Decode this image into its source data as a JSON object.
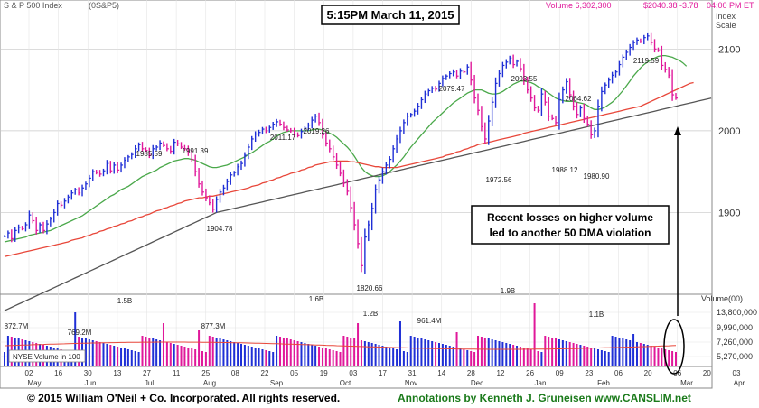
{
  "header": {
    "index_name": "S & P 500 Index",
    "symbol": "(0S&P5)",
    "timestamp": "5:15PM March 11, 2015",
    "volume": "Volume 6,302,300",
    "quote": "$2040.38 -3.78",
    "time": "04:00 PM ET",
    "scale_label_1": "Index",
    "scale_label_2": "Scale"
  },
  "annotation_box": {
    "line1": "Recent losses on higher volume",
    "line2": "led to another 50 DMA violation"
  },
  "volume_panel": {
    "legend": "NYSE Volume in 100",
    "axis_title": "Volume(00)",
    "ticks": [
      "13,800,000",
      "9,990,000",
      "7,260,000",
      "5,270,000"
    ]
  },
  "footer": {
    "copyright": "© 2015  William O'Neil + Co. Incorporated. All rights reserved.",
    "credit": "Annotations by Kenneth J. Gruneisen www.CANSLIM.net"
  },
  "colors": {
    "up_bar": "#1f2fd6",
    "down_bar": "#e0189a",
    "ma50": "#4aa84a",
    "ma200": "#e8473a",
    "ma_long": "#555555",
    "grid": "#c8c8c8",
    "footer_credit": "#1a7a1a"
  },
  "chart_data": {
    "type": "bar",
    "y_axis": {
      "ticks": [
        1900,
        2000,
        2100
      ],
      "range": [
        1800,
        2160
      ]
    },
    "x_axis": {
      "ticks": [
        "02",
        "16",
        "30",
        "13",
        "27",
        "11",
        "25",
        "08",
        "22",
        "05",
        "19",
        "03",
        "17",
        "31",
        "14",
        "28",
        "12",
        "26",
        "09",
        "23",
        "06",
        "20",
        "06",
        "20",
        "03"
      ],
      "months": [
        "May",
        "Jun",
        "Jul",
        "Aug",
        "Sep",
        "Oct",
        "Nov",
        "Dec",
        "Jan",
        "Feb",
        "Mar",
        "Apr"
      ]
    },
    "price_annotations": [
      "1985.59",
      "1991.39",
      "2011.17",
      "2019.26",
      "1904.78",
      "1820.66",
      "2079.47",
      "2093.55",
      "1972.56",
      "2064.62",
      "1988.12",
      "1980.90",
      "2119.59"
    ],
    "volume_annotations": [
      "872.7M",
      "769.2M",
      "1.5B",
      "877.3M",
      "1.6B",
      "1.2B",
      "961.4M",
      "1.9B",
      "1.1B"
    ],
    "series": [
      {
        "values": [
          1871,
          1875,
          1868,
          1878,
          1882,
          1880,
          1885,
          1897,
          1890,
          1878,
          1885,
          1878,
          1886,
          1892,
          1900,
          1911,
          1909,
          1914,
          1919,
          1924,
          1928,
          1924,
          1930,
          1935,
          1942,
          1950,
          1949,
          1947,
          1951,
          1960,
          1951,
          1958,
          1952,
          1958,
          1964,
          1968,
          1971,
          1978,
          1983,
          1978,
          1976,
          1970,
          1978,
          1980,
          1985,
          1982,
          1978,
          1975,
          1986,
          1984,
          1980,
          1978,
          1973,
          1965,
          1950,
          1935,
          1925,
          1918,
          1912,
          1904,
          1916,
          1925,
          1930,
          1938,
          1946,
          1949,
          1956,
          1960,
          1970,
          1980,
          1990,
          1996,
          1998,
          2002,
          2000,
          2004,
          2008,
          2011,
          2008,
          2004,
          2001,
          2000,
          1996,
          1994,
          1999,
          2003,
          2007,
          2013,
          2018,
          2010,
          1995,
          1985,
          1978,
          1968,
          1958,
          1948,
          1936,
          1926,
          1906,
          1885,
          1862,
          1835,
          1870,
          1885,
          1905,
          1928,
          1940,
          1950,
          1958,
          1965,
          1978,
          1990,
          2000,
          2010,
          2018,
          2020,
          2024,
          2030,
          2038,
          2045,
          2049,
          2052,
          2051,
          2058,
          2064,
          2067,
          2070,
          2072,
          2067,
          2073,
          2072,
          2078,
          2062,
          2040,
          2025,
          2005,
          1990,
          2012,
          2035,
          2058,
          2070,
          2080,
          2084,
          2089,
          2081,
          2085,
          2076,
          2062,
          2050,
          2040,
          2028,
          2025,
          2045,
          2035,
          2018,
          2015,
          2010,
          2038,
          2050,
          2060,
          2044,
          2030,
          2020,
          2028,
          2015,
          2008,
          1995,
          2000,
          2030,
          2048,
          2056,
          2062,
          2068,
          2072,
          2081,
          2090,
          2096,
          2102,
          2108,
          2111,
          2109,
          2114,
          2116,
          2108,
          2100,
          2098,
          2080,
          2075,
          2068,
          2044,
          2040
        ]
      },
      {
        "values": [
          1864,
          1865,
          1866,
          1867,
          1868,
          1869,
          1870,
          1872,
          1873,
          1874,
          1875,
          1876,
          1877,
          1878,
          1880,
          1882,
          1884,
          1886,
          1888,
          1890,
          1892,
          1894,
          1896,
          1899,
          1902,
          1905,
          1908,
          1911,
          1914,
          1917,
          1920,
          1922,
          1925,
          1928,
          1930,
          1932,
          1935,
          1938,
          1941,
          1944,
          1946,
          1948,
          1950,
          1952,
          1955,
          1957,
          1959,
          1961,
          1963,
          1964,
          1965,
          1966,
          1966,
          1965,
          1964,
          1962,
          1960,
          1958,
          1956,
          1955,
          1955,
          1956,
          1957,
          1958,
          1960,
          1962,
          1964,
          1966,
          1968,
          1971,
          1973,
          1976,
          1979,
          1982,
          1985,
          1987,
          1990,
          1993,
          1996,
          1998,
          1999,
          2000,
          2000,
          2000,
          2000,
          2000,
          2000,
          2001,
          2002,
          2002,
          2001,
          1999,
          1997,
          1995,
          1992,
          1988,
          1984,
          1980,
          1975,
          1969,
          1962,
          1955,
          1950,
          1947,
          1945,
          1944,
          1944,
          1945,
          1947,
          1950,
          1954,
          1958,
          1963,
          1968,
          1974,
          1980,
          1985,
          1990,
          1995,
          2000,
          2005,
          2010,
          2014,
          2018,
          2022,
          2026,
          2030,
          2034,
          2037,
          2040,
          2043,
          2046,
          2048,
          2050,
          2050,
          2050,
          2048,
          2046,
          2045,
          2045,
          2046,
          2048,
          2051,
          2054,
          2057,
          2059,
          2061,
          2061,
          2060,
          2059,
          2057,
          2054,
          2052,
          2049,
          2046,
          2043,
          2040,
          2038,
          2037,
          2036,
          2036,
          2036,
          2035,
          2034,
          2033,
          2031,
          2028,
          2026,
          2026,
          2027,
          2029,
          2032,
          2035,
          2039,
          2044,
          2049,
          2055,
          2061,
          2067,
          2072,
          2077,
          2081,
          2084,
          2087,
          2089,
          2091,
          2092,
          2092,
          2091,
          2090,
          2088,
          2086,
          2083,
          2079
        ]
      },
      {
        "values": [
          1846,
          1847,
          1848,
          1849,
          1850,
          1851,
          1852,
          1853,
          1854,
          1855,
          1856,
          1857,
          1858,
          1859,
          1860,
          1861,
          1862,
          1863,
          1864,
          1866,
          1867,
          1868,
          1869,
          1871,
          1872,
          1874,
          1875,
          1877,
          1878,
          1880,
          1881,
          1883,
          1884,
          1886,
          1887,
          1889,
          1890,
          1892,
          1894,
          1895,
          1897,
          1898,
          1900,
          1902,
          1903,
          1905,
          1906,
          1908,
          1909,
          1911,
          1912,
          1914,
          1915,
          1916,
          1917,
          1918,
          1918,
          1919,
          1920,
          1920,
          1921,
          1922,
          1923,
          1924,
          1925,
          1926,
          1927,
          1928,
          1929,
          1930,
          1932,
          1933,
          1934,
          1936,
          1937,
          1939,
          1940,
          1942,
          1943,
          1945,
          1946,
          1948,
          1949,
          1950,
          1952,
          1953,
          1955,
          1956,
          1958,
          1959,
          1960,
          1961,
          1962,
          1962,
          1963,
          1963,
          1963,
          1963,
          1962,
          1962,
          1961,
          1960,
          1959,
          1958,
          1957,
          1956,
          1956,
          1955,
          1955,
          1955,
          1955,
          1955,
          1956,
          1957,
          1958,
          1959,
          1960,
          1961,
          1962,
          1963,
          1964,
          1965,
          1966,
          1967,
          1968,
          1970,
          1971,
          1972,
          1974,
          1975,
          1977,
          1978,
          1980,
          1981,
          1983,
          1984,
          1985,
          1986,
          1987,
          1988,
          1989,
          1990,
          1991,
          1992,
          1993,
          1994,
          1995,
          1997,
          1998,
          1999,
          2000,
          2001,
          2002,
          2003,
          2004,
          2005,
          2006,
          2007,
          2008,
          2009,
          2010,
          2011,
          2012,
          2013,
          2014,
          2015,
          2016,
          2017,
          2018,
          2019,
          2020,
          2021,
          2022,
          2023,
          2024,
          2025,
          2026,
          2027,
          2028,
          2029,
          2030,
          2032,
          2034,
          2036,
          2038,
          2040,
          2042,
          2044,
          2046,
          2048,
          2050,
          2052,
          2054,
          2056,
          2058,
          2059
        ]
      },
      {
        "values": [
          1780,
          1782,
          1784,
          1786,
          1788,
          1790,
          1792,
          1794,
          1796,
          1798,
          1800,
          1802,
          1804,
          1806,
          1808,
          1810,
          1812,
          1814,
          1816,
          1818,
          1820,
          1822,
          1824,
          1826,
          1828,
          1830,
          1832,
          1834,
          1836,
          1838,
          1840,
          1842,
          1844,
          1846,
          1848,
          1850,
          1852,
          1854,
          1856,
          1858,
          1860,
          1862,
          1864,
          1866,
          1868,
          1870,
          1872,
          1874,
          1876,
          1878,
          1880,
          1882,
          1884,
          1886,
          1888,
          1890,
          1892,
          1894,
          1896,
          1898,
          1900,
          1901,
          1902,
          1903,
          1904,
          1905,
          1906,
          1907,
          1908,
          1909,
          1910,
          1911,
          1912,
          1913,
          1914,
          1915,
          1916,
          1917,
          1918,
          1919,
          1920,
          1921,
          1922,
          1923,
          1924,
          1925,
          1926,
          1927,
          1928,
          1929,
          1930,
          1931,
          1932,
          1933,
          1934,
          1935,
          1936,
          1937,
          1938,
          1939,
          1940,
          1941,
          1942,
          1943,
          1944,
          1945,
          1946,
          1947,
          1948,
          1949,
          1950,
          1951,
          1952,
          1953,
          1954,
          1955,
          1956,
          1957,
          1958,
          1959,
          1960,
          1961,
          1962,
          1963,
          1964,
          1965,
          1966,
          1967,
          1968,
          1969,
          1970,
          1971,
          1972,
          1973,
          1974,
          1975,
          1976,
          1977,
          1978,
          1979,
          1980,
          1981,
          1982,
          1983,
          1984,
          1985,
          1986,
          1987,
          1988,
          1989,
          1990,
          1991,
          1992,
          1993,
          1994,
          1995,
          1996,
          1997,
          1998,
          1999,
          2000,
          2001,
          2002,
          2003,
          2004,
          2005,
          2006,
          2007,
          2008,
          2009,
          2010,
          2011,
          2012,
          2013,
          2014,
          2015,
          2016,
          2017,
          2018,
          2019,
          2020,
          2021,
          2022,
          2023,
          2024,
          2025,
          2026,
          2027,
          2028,
          2029,
          2030,
          2031,
          2032,
          2033,
          2034,
          2035,
          2036,
          2037,
          2038,
          2039,
          2040
        ]
      }
    ]
  }
}
